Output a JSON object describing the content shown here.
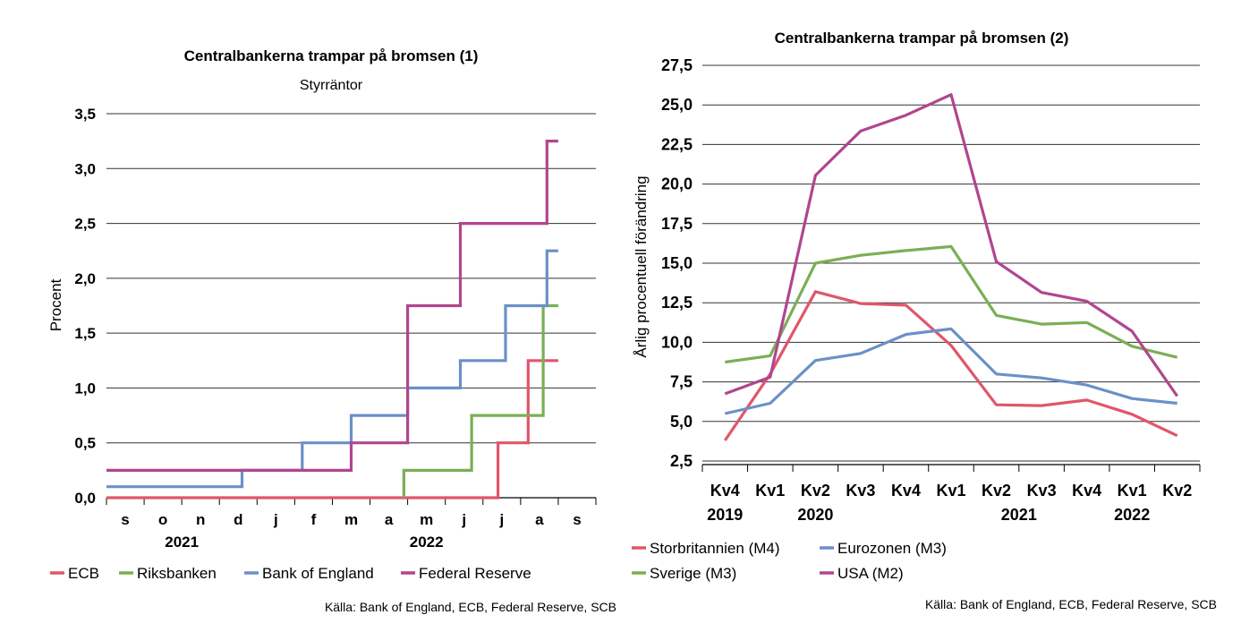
{
  "charts": [
    {
      "title": "Centralbankerna trampar på bromsen (1)",
      "subtitle": "Styrräntor",
      "ylabel": "Procent",
      "source": "Källa: Bank of England, ECB, Federal Reserve, SCB",
      "ytick_labels": [
        "0,0",
        "0,5",
        "1,0",
        "1,5",
        "2,0",
        "2,5",
        "3,0",
        "3,5"
      ],
      "xtick_labels": [
        "s",
        "o",
        "n",
        "d",
        "j",
        "f",
        "m",
        "a",
        "m",
        "j",
        "j",
        "a",
        "s"
      ],
      "year_labels": [
        "2021",
        "2022"
      ],
      "legend": [
        "ECB",
        "Riksbanken",
        "Bank of England",
        "Federal Reserve"
      ]
    },
    {
      "title": "Centralbankerna trampar på bromsen (2)",
      "ylabel": "Årlig procentuell förändring",
      "source": "Källa: Bank of England, ECB, Federal Reserve, SCB",
      "ytick_labels": [
        "2,5",
        "5,0",
        "7,5",
        "10,0",
        "12,5",
        "15,0",
        "17,5",
        "20,0",
        "22,5",
        "25,0",
        "27,5"
      ],
      "xtick_labels": [
        "Kv4",
        "Kv1",
        "Kv2",
        "Kv3",
        "Kv4",
        "Kv1",
        "Kv2",
        "Kv3",
        "Kv4",
        "Kv1",
        "Kv2"
      ],
      "year_labels": [
        "2019",
        "2020",
        "2021",
        "2022"
      ],
      "legend": [
        "Storbritannien (M4)",
        "Eurozonen (M3)",
        "Sverige (M3)",
        "USA (M2)"
      ]
    }
  ],
  "colors": {
    "ECB": "#e0566b",
    "Riksbanken": "#7aaf55",
    "Bank of England": "#6b90c8",
    "Federal Reserve": "#b0468f",
    "Storbritannien (M4)": "#e0566b",
    "Eurozonen (M3)": "#6b90c8",
    "Sverige (M3)": "#7aaf55",
    "USA (M2)": "#b0468f"
  },
  "chart_data": [
    {
      "type": "line",
      "title": "Centralbankerna trampar på bromsen (1)",
      "subtitle": "Styrräntor",
      "ylabel": "Procent",
      "xlabel": "",
      "ylim": [
        0,
        3.5
      ],
      "x_unit": "months since Aug 2021",
      "xlim": [
        0,
        13
      ],
      "categories": [
        "s",
        "o",
        "n",
        "d",
        "j",
        "f",
        "m",
        "a",
        "m",
        "j",
        "j",
        "a",
        "s"
      ],
      "grid": true,
      "legend_position": "bottom",
      "step": true,
      "series": [
        {
          "name": "ECB",
          "points": [
            [
              0,
              0.0
            ],
            [
              10.4,
              0.0
            ],
            [
              10.4,
              0.5
            ],
            [
              11.2,
              0.5
            ],
            [
              11.2,
              1.25
            ],
            [
              12.0,
              1.25
            ]
          ]
        },
        {
          "name": "Riksbanken",
          "points": [
            [
              7.9,
              0.0
            ],
            [
              7.9,
              0.25
            ],
            [
              9.7,
              0.25
            ],
            [
              9.7,
              0.75
            ],
            [
              11.6,
              0.75
            ],
            [
              11.6,
              1.75
            ],
            [
              12.0,
              1.75
            ]
          ]
        },
        {
          "name": "Bank of England",
          "points": [
            [
              0,
              0.1
            ],
            [
              3.6,
              0.1
            ],
            [
              3.6,
              0.25
            ],
            [
              5.2,
              0.25
            ],
            [
              5.2,
              0.5
            ],
            [
              6.5,
              0.5
            ],
            [
              6.5,
              0.75
            ],
            [
              8.0,
              0.75
            ],
            [
              8.0,
              1.0
            ],
            [
              9.4,
              1.0
            ],
            [
              9.4,
              1.25
            ],
            [
              10.6,
              1.25
            ],
            [
              10.6,
              1.75
            ],
            [
              11.7,
              1.75
            ],
            [
              11.7,
              2.25
            ],
            [
              12.0,
              2.25
            ]
          ]
        },
        {
          "name": "Federal Reserve",
          "points": [
            [
              0,
              0.25
            ],
            [
              6.5,
              0.25
            ],
            [
              6.5,
              0.5
            ],
            [
              8.0,
              0.5
            ],
            [
              8.0,
              1.75
            ],
            [
              9.4,
              1.75
            ],
            [
              9.4,
              2.5
            ],
            [
              11.7,
              2.5
            ],
            [
              11.7,
              3.25
            ],
            [
              12.0,
              3.25
            ]
          ]
        }
      ]
    },
    {
      "type": "line",
      "title": "Centralbankerna trampar på bromsen (2)",
      "ylabel": "Årlig procentuell förändring",
      "xlabel": "",
      "ylim": [
        2.5,
        27.5
      ],
      "categories": [
        "Kv4 2019",
        "Kv1 2020",
        "Kv2 2020",
        "Kv3 2020",
        "Kv4 2020",
        "Kv1 2021",
        "Kv2 2021",
        "Kv3 2021",
        "Kv4 2021",
        "Kv1 2022",
        "Kv2 2022"
      ],
      "grid": true,
      "legend_position": "bottom",
      "series": [
        {
          "name": "Storbritannien (M4)",
          "values": [
            3.8,
            8.0,
            13.2,
            12.45,
            12.35,
            9.8,
            6.05,
            6.0,
            6.35,
            5.45,
            4.1
          ]
        },
        {
          "name": "Eurozonen (M3)",
          "values": [
            5.5,
            6.15,
            8.85,
            9.3,
            10.5,
            10.85,
            8.0,
            7.75,
            7.3,
            6.45,
            6.15
          ]
        },
        {
          "name": "Sverige (M3)",
          "values": [
            8.75,
            9.15,
            15.0,
            15.5,
            15.8,
            16.05,
            11.7,
            11.15,
            11.25,
            9.75,
            9.05
          ]
        },
        {
          "name": "USA (M2)",
          "values": [
            6.75,
            7.8,
            20.55,
            23.35,
            24.35,
            25.65,
            15.1,
            13.15,
            12.6,
            10.7,
            6.6
          ]
        }
      ]
    }
  ]
}
